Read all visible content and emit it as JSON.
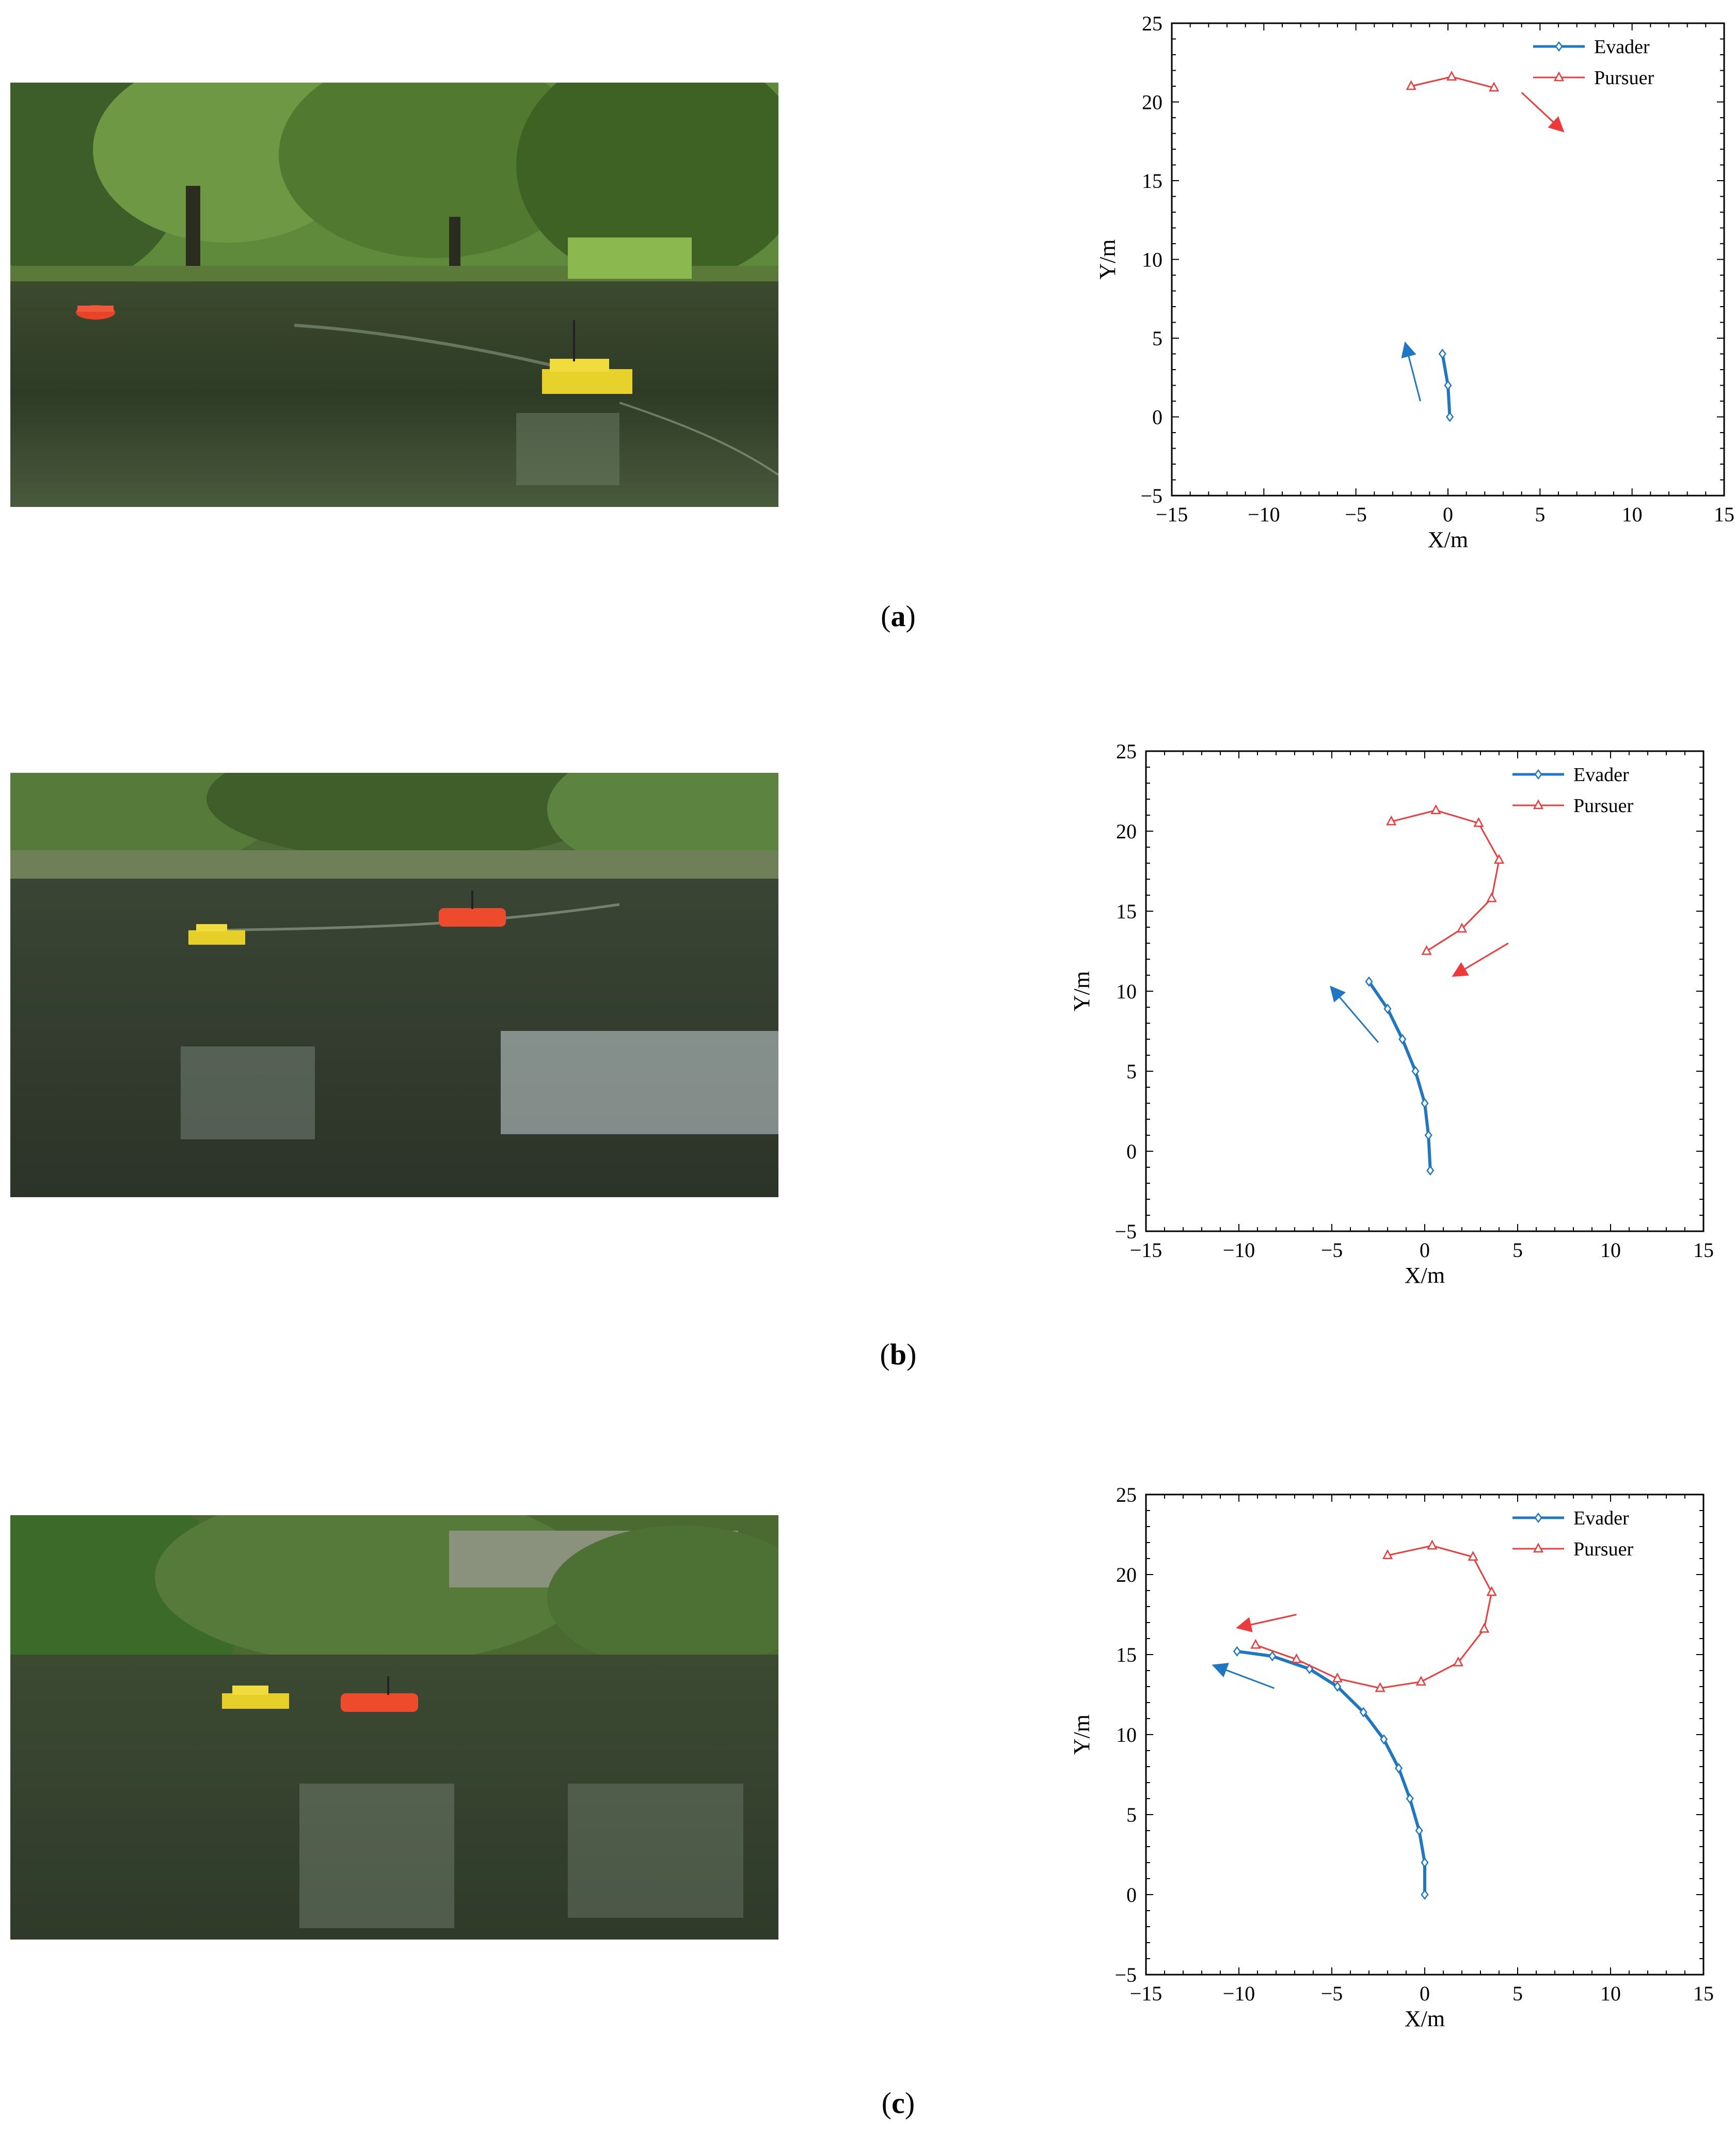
{
  "captions": {
    "a": "a",
    "b": "b",
    "c": "c"
  },
  "photos": [
    {
      "id": "a",
      "description_kind": "lake-scene-yellow-boat-right-red-boat-left"
    },
    {
      "id": "b",
      "description_kind": "lake-scene-yellow-boat-left-red-boat-center"
    },
    {
      "id": "c",
      "description_kind": "lake-scene-yellow-boat-red-boat-close"
    }
  ],
  "colors": {
    "evader": "#1f77c4",
    "pursuer": "#ee3a3a"
  },
  "chart_data": [
    {
      "type": "line",
      "panel": "a",
      "xlabel": "X/m",
      "ylabel": "Y/m",
      "xlim": [
        -15,
        15
      ],
      "ylim": [
        -5,
        25
      ],
      "xticks": [
        "−15",
        "−10",
        "−5",
        "0",
        "5",
        "10",
        "15"
      ],
      "yticks": [
        "−5",
        "0",
        "5",
        "10",
        "15",
        "20",
        "25"
      ],
      "legend_position": "top-right",
      "series": [
        {
          "name": "Evader",
          "marker": "diamond",
          "points": [
            [
              0.1,
              0.0
            ],
            [
              0.0,
              2.0
            ],
            [
              -0.3,
              4.0
            ]
          ]
        },
        {
          "name": "Pursuer",
          "marker": "triangle",
          "points": [
            [
              -2.0,
              21.0
            ],
            [
              0.2,
              21.6
            ],
            [
              2.5,
              20.9
            ]
          ]
        }
      ],
      "arrows": [
        {
          "series": "Evader",
          "from": [
            -1.5,
            1.0
          ],
          "to": [
            -2.3,
            4.6
          ]
        },
        {
          "series": "Pursuer",
          "from": [
            4.0,
            20.6
          ],
          "to": [
            6.2,
            18.2
          ]
        }
      ]
    },
    {
      "type": "line",
      "panel": "b",
      "xlabel": "X/m",
      "ylabel": "Y/m",
      "xlim": [
        -15,
        15
      ],
      "ylim": [
        -5,
        25
      ],
      "xticks": [
        "−15",
        "−10",
        "−5",
        "0",
        "5",
        "10",
        "15"
      ],
      "yticks": [
        "−5",
        "0",
        "5",
        "10",
        "15",
        "20",
        "25"
      ],
      "legend_position": "top-right",
      "series": [
        {
          "name": "Evader",
          "marker": "diamond",
          "points": [
            [
              0.3,
              -1.2
            ],
            [
              0.2,
              1.0
            ],
            [
              0.0,
              3.0
            ],
            [
              -0.5,
              5.0
            ],
            [
              -1.2,
              7.0
            ],
            [
              -2.0,
              8.9
            ],
            [
              -3.0,
              10.6
            ]
          ]
        },
        {
          "name": "Pursuer",
          "marker": "triangle",
          "points": [
            [
              -1.8,
              20.6
            ],
            [
              0.6,
              21.3
            ],
            [
              2.9,
              20.5
            ],
            [
              4.0,
              18.2
            ],
            [
              3.6,
              15.8
            ],
            [
              2.0,
              13.9
            ],
            [
              0.1,
              12.5
            ]
          ]
        }
      ],
      "arrows": [
        {
          "series": "Evader",
          "from": [
            -2.5,
            6.8
          ],
          "to": [
            -5.0,
            10.2
          ]
        },
        {
          "series": "Pursuer",
          "from": [
            4.5,
            13.0
          ],
          "to": [
            1.6,
            11.0
          ]
        }
      ]
    },
    {
      "type": "line",
      "panel": "c",
      "xlabel": "X/m",
      "ylabel": "Y/m",
      "xlim": [
        -15,
        15
      ],
      "ylim": [
        -5,
        25
      ],
      "xticks": [
        "−15",
        "−10",
        "−5",
        "0",
        "5",
        "10",
        "15"
      ],
      "yticks": [
        "−5",
        "0",
        "5",
        "10",
        "15",
        "20",
        "25"
      ],
      "legend_position": "top-right",
      "series": [
        {
          "name": "Evader",
          "marker": "diamond",
          "points": [
            [
              0.0,
              0.0
            ],
            [
              0.0,
              2.0
            ],
            [
              -0.3,
              4.0
            ],
            [
              -0.8,
              6.0
            ],
            [
              -1.4,
              7.9
            ],
            [
              -2.2,
              9.7
            ],
            [
              -3.3,
              11.4
            ],
            [
              -4.7,
              13.0
            ],
            [
              -6.2,
              14.1
            ],
            [
              -8.2,
              14.9
            ],
            [
              -10.1,
              15.2
            ]
          ]
        },
        {
          "name": "Pursuer",
          "marker": "triangle",
          "points": [
            [
              -2.0,
              21.2
            ],
            [
              0.4,
              21.8
            ],
            [
              2.6,
              21.1
            ],
            [
              3.6,
              18.9
            ],
            [
              3.2,
              16.6
            ],
            [
              1.8,
              14.5
            ],
            [
              -0.2,
              13.3
            ],
            [
              -2.4,
              12.9
            ],
            [
              -4.7,
              13.5
            ],
            [
              -6.9,
              14.7
            ],
            [
              -9.1,
              15.6
            ]
          ]
        }
      ],
      "arrows": [
        {
          "series": "Evader",
          "from": [
            -8.1,
            12.9
          ],
          "to": [
            -11.3,
            14.3
          ]
        },
        {
          "series": "Pursuer",
          "from": [
            -6.9,
            17.5
          ],
          "to": [
            -10.0,
            16.7
          ]
        }
      ]
    }
  ]
}
